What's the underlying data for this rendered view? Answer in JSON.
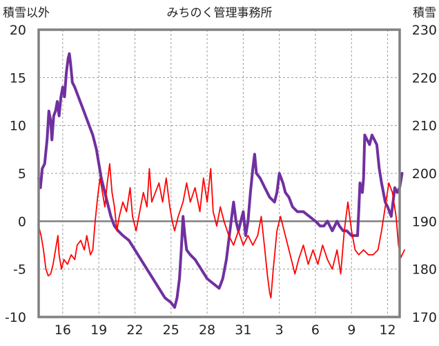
{
  "chart_data": {
    "type": "line",
    "title": "みちのく管理事務所",
    "ylabel_left": "積雪以外",
    "ylabel_right": "積雪",
    "xlabel": "",
    "grid": true,
    "legend": "none",
    "x_range": [
      0,
      30
    ],
    "xticks": [
      {
        "x": 2,
        "label": "16"
      },
      {
        "x": 5,
        "label": "19"
      },
      {
        "x": 8,
        "label": "22"
      },
      {
        "x": 11,
        "label": "25"
      },
      {
        "x": 14,
        "label": "28"
      },
      {
        "x": 17,
        "label": "31"
      },
      {
        "x": 20,
        "label": "3"
      },
      {
        "x": 23,
        "label": "6"
      },
      {
        "x": 26,
        "label": "9"
      },
      {
        "x": 29,
        "label": "12"
      }
    ],
    "yaxis_left": {
      "range": [
        -10,
        20
      ],
      "ticks": [
        "-10",
        "-5",
        "0",
        "5",
        "10",
        "15",
        "20"
      ]
    },
    "yaxis_right": {
      "range": [
        170,
        230
      ],
      "ticks": [
        "170",
        "180",
        "190",
        "200",
        "210",
        "220",
        "230"
      ]
    },
    "series": [
      {
        "axis": "right",
        "color": "#7030a0",
        "points": [
          [
            0.0,
            199
          ],
          [
            0.15,
            197
          ],
          [
            0.3,
            201
          ],
          [
            0.5,
            202
          ],
          [
            0.7,
            207
          ],
          [
            0.85,
            213
          ],
          [
            1.0,
            211
          ],
          [
            1.1,
            207
          ],
          [
            1.25,
            212
          ],
          [
            1.4,
            213
          ],
          [
            1.55,
            215
          ],
          [
            1.7,
            212
          ],
          [
            1.85,
            216
          ],
          [
            2.0,
            218
          ],
          [
            2.15,
            216
          ],
          [
            2.3,
            221
          ],
          [
            2.45,
            224
          ],
          [
            2.55,
            225
          ],
          [
            2.65,
            223
          ],
          [
            2.8,
            219
          ],
          [
            3.0,
            218
          ],
          [
            3.3,
            216
          ],
          [
            3.6,
            214
          ],
          [
            3.9,
            212
          ],
          [
            4.2,
            210
          ],
          [
            4.5,
            208
          ],
          [
            4.8,
            205
          ],
          [
            5.0,
            202
          ],
          [
            5.2,
            199
          ],
          [
            5.5,
            196
          ],
          [
            5.8,
            193
          ],
          [
            6.0,
            191
          ],
          [
            6.3,
            189
          ],
          [
            6.6,
            188
          ],
          [
            7.0,
            187
          ],
          [
            7.5,
            186
          ],
          [
            8.0,
            184
          ],
          [
            8.5,
            182
          ],
          [
            9.0,
            180
          ],
          [
            9.5,
            178
          ],
          [
            10.0,
            176
          ],
          [
            10.5,
            174
          ],
          [
            11.0,
            173
          ],
          [
            11.3,
            172
          ],
          [
            11.5,
            174
          ],
          [
            11.7,
            178
          ],
          [
            11.85,
            184
          ],
          [
            12.0,
            191
          ],
          [
            12.15,
            187
          ],
          [
            12.3,
            184
          ],
          [
            12.6,
            183
          ],
          [
            13.0,
            182
          ],
          [
            13.5,
            180
          ],
          [
            14.0,
            178
          ],
          [
            14.5,
            177
          ],
          [
            15.0,
            176
          ],
          [
            15.3,
            178
          ],
          [
            15.6,
            182
          ],
          [
            15.8,
            186
          ],
          [
            16.0,
            190
          ],
          [
            16.2,
            194
          ],
          [
            16.4,
            190
          ],
          [
            16.6,
            188
          ],
          [
            16.8,
            190
          ],
          [
            17.0,
            192
          ],
          [
            17.2,
            187
          ],
          [
            17.4,
            190
          ],
          [
            17.6,
            196
          ],
          [
            17.8,
            201
          ],
          [
            17.95,
            204
          ],
          [
            18.1,
            200
          ],
          [
            18.4,
            199
          ],
          [
            18.8,
            197
          ],
          [
            19.2,
            195
          ],
          [
            19.6,
            194
          ],
          [
            19.8,
            196
          ],
          [
            20.0,
            200
          ],
          [
            20.3,
            198
          ],
          [
            20.5,
            196
          ],
          [
            20.8,
            195
          ],
          [
            21.1,
            193
          ],
          [
            21.5,
            192
          ],
          [
            22.0,
            192
          ],
          [
            22.5,
            191
          ],
          [
            23.0,
            190
          ],
          [
            23.4,
            189
          ],
          [
            23.7,
            189
          ],
          [
            24.0,
            190
          ],
          [
            24.4,
            188
          ],
          [
            24.8,
            190
          ],
          [
            25.0,
            189
          ],
          [
            25.3,
            188
          ],
          [
            25.6,
            188
          ],
          [
            26.0,
            187
          ],
          [
            26.3,
            187
          ],
          [
            26.5,
            187
          ],
          [
            26.6,
            192
          ],
          [
            26.7,
            198
          ],
          [
            26.9,
            196
          ],
          [
            27.0,
            199
          ],
          [
            27.1,
            208
          ],
          [
            27.3,
            207
          ],
          [
            27.5,
            206
          ],
          [
            27.7,
            208
          ],
          [
            27.9,
            207
          ],
          [
            28.1,
            206
          ],
          [
            28.3,
            201
          ],
          [
            28.5,
            198
          ],
          [
            28.8,
            194
          ],
          [
            29.0,
            193
          ],
          [
            29.3,
            191
          ],
          [
            29.6,
            197
          ],
          [
            29.8,
            196
          ],
          [
            30.0,
            197
          ],
          [
            30.2,
            200
          ]
        ]
      },
      {
        "axis": "left",
        "color": "#ff0000",
        "points": [
          [
            0.0,
            -0.5
          ],
          [
            0.2,
            -1.5
          ],
          [
            0.4,
            -3.0
          ],
          [
            0.6,
            -5.0
          ],
          [
            0.8,
            -5.7
          ],
          [
            1.0,
            -5.5
          ],
          [
            1.2,
            -4.5
          ],
          [
            1.4,
            -3.0
          ],
          [
            1.6,
            -1.5
          ],
          [
            1.7,
            -3.5
          ],
          [
            1.9,
            -5.0
          ],
          [
            2.1,
            -4.0
          ],
          [
            2.4,
            -4.5
          ],
          [
            2.7,
            -3.5
          ],
          [
            3.0,
            -4.0
          ],
          [
            3.2,
            -2.5
          ],
          [
            3.5,
            -2.0
          ],
          [
            3.8,
            -3.0
          ],
          [
            4.0,
            -1.5
          ],
          [
            4.3,
            -3.5
          ],
          [
            4.5,
            -3.0
          ],
          [
            4.7,
            0.0
          ],
          [
            4.9,
            2.5
          ],
          [
            5.1,
            4.5
          ],
          [
            5.3,
            3.0
          ],
          [
            5.5,
            1.5
          ],
          [
            5.7,
            4.0
          ],
          [
            5.9,
            6.0
          ],
          [
            6.1,
            3.0
          ],
          [
            6.3,
            1.5
          ],
          [
            6.5,
            -1.0
          ],
          [
            6.7,
            0.5
          ],
          [
            7.0,
            2.0
          ],
          [
            7.3,
            1.0
          ],
          [
            7.6,
            3.5
          ],
          [
            7.8,
            0.5
          ],
          [
            8.1,
            -1.0
          ],
          [
            8.4,
            1.0
          ],
          [
            8.7,
            3.0
          ],
          [
            9.0,
            1.5
          ],
          [
            9.2,
            5.5
          ],
          [
            9.4,
            2.0
          ],
          [
            9.7,
            3.0
          ],
          [
            10.0,
            4.0
          ],
          [
            10.3,
            2.0
          ],
          [
            10.6,
            4.5
          ],
          [
            10.9,
            1.5
          ],
          [
            11.1,
            0.0
          ],
          [
            11.3,
            -1.0
          ],
          [
            11.6,
            0.5
          ],
          [
            12.0,
            2.0
          ],
          [
            12.3,
            4.0
          ],
          [
            12.6,
            2.0
          ],
          [
            13.0,
            3.5
          ],
          [
            13.4,
            1.0
          ],
          [
            13.7,
            4.5
          ],
          [
            14.0,
            2.0
          ],
          [
            14.3,
            5.5
          ],
          [
            14.5,
            1.0
          ],
          [
            14.8,
            -0.5
          ],
          [
            15.1,
            1.5
          ],
          [
            15.4,
            0.0
          ],
          [
            15.8,
            -1.5
          ],
          [
            16.2,
            -2.5
          ],
          [
            16.6,
            -1.0
          ],
          [
            17.0,
            -2.5
          ],
          [
            17.4,
            -1.5
          ],
          [
            17.8,
            -2.5
          ],
          [
            18.2,
            -1.5
          ],
          [
            18.5,
            0.5
          ],
          [
            18.8,
            -3.0
          ],
          [
            19.0,
            -5.5
          ],
          [
            19.2,
            -7.5
          ],
          [
            19.3,
            -8.0
          ],
          [
            19.5,
            -5.0
          ],
          [
            19.8,
            -1.0
          ],
          [
            20.1,
            0.5
          ],
          [
            20.4,
            -1.0
          ],
          [
            20.7,
            -2.5
          ],
          [
            21.0,
            -4.0
          ],
          [
            21.3,
            -5.5
          ],
          [
            21.6,
            -4.0
          ],
          [
            22.0,
            -2.5
          ],
          [
            22.4,
            -4.5
          ],
          [
            22.8,
            -3.0
          ],
          [
            23.2,
            -4.5
          ],
          [
            23.6,
            -2.5
          ],
          [
            24.0,
            -4.0
          ],
          [
            24.4,
            -5.0
          ],
          [
            24.8,
            -3.0
          ],
          [
            25.1,
            -5.5
          ],
          [
            25.4,
            -1.0
          ],
          [
            25.7,
            2.0
          ],
          [
            26.0,
            -1.0
          ],
          [
            26.3,
            -3.0
          ],
          [
            26.6,
            -3.5
          ],
          [
            27.0,
            -3.0
          ],
          [
            27.4,
            -3.5
          ],
          [
            27.8,
            -3.5
          ],
          [
            28.2,
            -3.0
          ],
          [
            28.5,
            -1.0
          ],
          [
            28.8,
            1.5
          ],
          [
            29.1,
            4.0
          ],
          [
            29.4,
            3.0
          ],
          [
            29.7,
            0.5
          ],
          [
            29.9,
            -2.5
          ],
          [
            30.1,
            -3.8
          ],
          [
            30.4,
            -3.0
          ]
        ]
      }
    ]
  }
}
